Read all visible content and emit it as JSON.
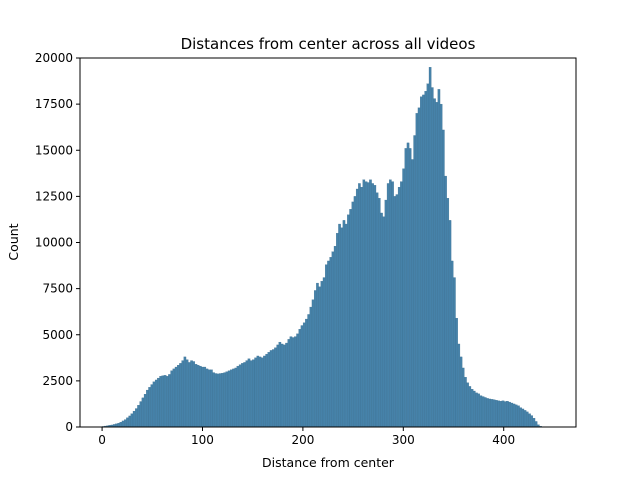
{
  "colors": {
    "bar_fill": "#4682a9",
    "bar_edge": "#3b6f91",
    "axis": "#000000",
    "background": "#ffffff"
  },
  "chart_data": {
    "type": "bar",
    "title": "Distances from center across all videos",
    "xlabel": "Distance from center",
    "ylabel": "Count",
    "xlim": [
      -22,
      472
    ],
    "ylim": [
      0,
      20000
    ],
    "grid": false,
    "legend": "none",
    "xticks": [
      0,
      100,
      200,
      300,
      400
    ],
    "yticks": [
      0,
      2500,
      5000,
      7500,
      10000,
      12500,
      15000,
      17500,
      20000
    ],
    "xtick_labels": [
      "0",
      "100",
      "200",
      "300",
      "400"
    ],
    "ytick_labels": [
      "0",
      "2500",
      "5000",
      "7500",
      "10000",
      "12500",
      "15000",
      "17500",
      "20000"
    ],
    "bin_start": 0,
    "bin_width": 2.2,
    "values": [
      30,
      50,
      70,
      90,
      110,
      140,
      170,
      210,
      260,
      330,
      400,
      500,
      600,
      720,
      860,
      1000,
      1180,
      1380,
      1580,
      1780,
      2000,
      2150,
      2300,
      2450,
      2550,
      2650,
      2750,
      2780,
      2800,
      2750,
      2850,
      3050,
      3150,
      3250,
      3350,
      3450,
      3600,
      3800,
      3650,
      3500,
      3600,
      3550,
      3400,
      3350,
      3300,
      3250,
      3250,
      3150,
      3100,
      3100,
      2950,
      2900,
      2880,
      2900,
      2920,
      2950,
      3000,
      3050,
      3100,
      3150,
      3200,
      3300,
      3380,
      3450,
      3500,
      3600,
      3700,
      3600,
      3650,
      3750,
      3850,
      3800,
      3750,
      3850,
      3950,
      4050,
      4150,
      4200,
      4300,
      4450,
      4600,
      4500,
      4450,
      4550,
      4750,
      4900,
      4850,
      4900,
      5050,
      5300,
      5500,
      5650,
      5850,
      6100,
      6500,
      6900,
      7400,
      7800,
      7600,
      7900,
      8100,
      8800,
      9000,
      9200,
      9500,
      9800,
      10500,
      11000,
      10800,
      11200,
      11000,
      11500,
      11800,
      12200,
      12500,
      12900,
      13200,
      13000,
      13400,
      13300,
      13250,
      13400,
      13200,
      13100,
      12700,
      12400,
      11600,
      11400,
      12300,
      13200,
      13400,
      13300,
      12500,
      12600,
      13000,
      13300,
      14000,
      15100,
      15400,
      15100,
      14500,
      15800,
      17000,
      17300,
      17900,
      18000,
      18200,
      18600,
      19500,
      18400,
      17800,
      17600,
      18300,
      17500,
      16100,
      13600,
      12400,
      11200,
      9000,
      8100,
      5900,
      4500,
      3800,
      3200,
      2700,
      2400,
      2200,
      2050,
      1950,
      1850,
      1800,
      1700,
      1650,
      1600,
      1550,
      1520,
      1500,
      1480,
      1450,
      1420,
      1400,
      1420,
      1380,
      1400,
      1350,
      1300,
      1250,
      1200,
      1150,
      1050,
      980,
      900,
      820,
      720,
      620,
      480,
      300,
      120,
      40,
      10
    ]
  }
}
